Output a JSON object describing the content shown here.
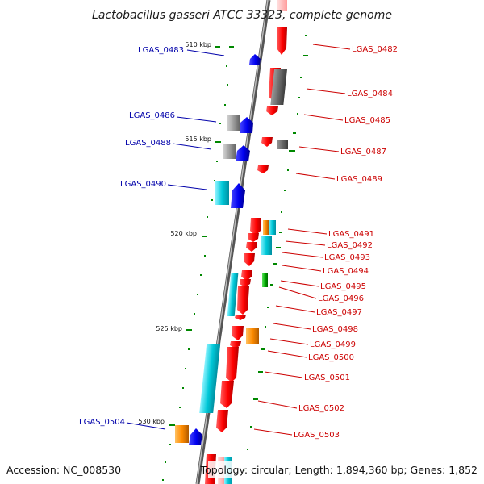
{
  "map": {
    "title": "Lactobacillus gasseri ATCC 33323, complete genome",
    "accession": "Accession: NC_008530",
    "topology": "Topology: circular; Length: 1,894,360 bp; Genes: 1,852"
  },
  "ticks": [
    "510 kbp",
    "515 kbp",
    "520 kbp",
    "525 kbp",
    "530 kbp"
  ],
  "labels_forward": [
    "LGAS_0482",
    "LGAS_0484",
    "LGAS_0485",
    "LGAS_0487",
    "LGAS_0489",
    "LGAS_0491",
    "LGAS_0492",
    "LGAS_0493",
    "LGAS_0494",
    "LGAS_0495",
    "LGAS_0496",
    "LGAS_0497",
    "LGAS_0498",
    "LGAS_0499",
    "LGAS_0500",
    "LGAS_0501",
    "LGAS_0502",
    "LGAS_0503"
  ],
  "labels_reverse": [
    "LGAS_0483",
    "LGAS_0486",
    "LGAS_0488",
    "LGAS_0490",
    "LGAS_0504"
  ],
  "colors": {
    "forward_cds": "#ff0000",
    "reverse_cds": "#0000ee",
    "gene_grey": "#808080",
    "gene_cyan": "#00c8d8",
    "gene_orange": "#ff8c00",
    "gene_green": "#00b000",
    "backbone": "#777777",
    "gc_marks": "#008800",
    "forward_label": "#cc0000",
    "reverse_label": "#0000aa"
  }
}
